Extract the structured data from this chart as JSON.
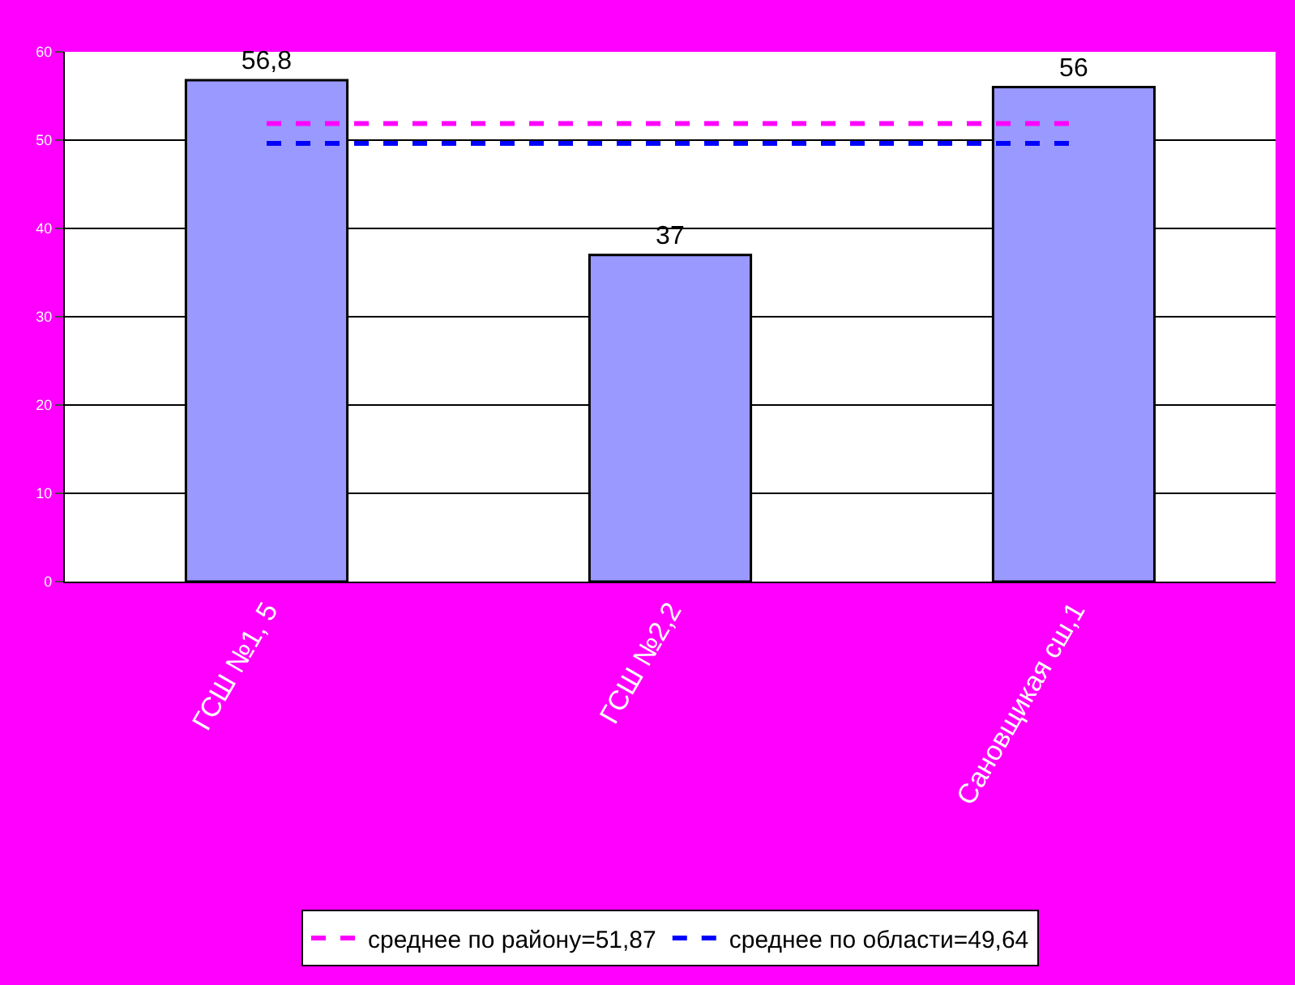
{
  "chart_data": {
    "type": "bar",
    "categories": [
      "ГСШ №1, 5",
      "ГСШ №2,2",
      "Сановщикая сш,1"
    ],
    "values": [
      56.8,
      37,
      56
    ],
    "value_labels": [
      "56,8",
      "37",
      "56"
    ],
    "color": "#9999ff",
    "ylim": [
      0,
      60
    ],
    "yticks": [
      0,
      10,
      20,
      30,
      40,
      50,
      60
    ],
    "grid": "y",
    "legend": "bottom",
    "ref_lines": [
      {
        "axis": "y",
        "value": 51.87,
        "label": "среднее по району=51,87",
        "color": "#ff00ff",
        "line_style": "dashed"
      },
      {
        "axis": "y",
        "value": 49.64,
        "label": "среднее по области=49,64",
        "color": "#0000ff",
        "line_style": "dashed"
      }
    ]
  }
}
